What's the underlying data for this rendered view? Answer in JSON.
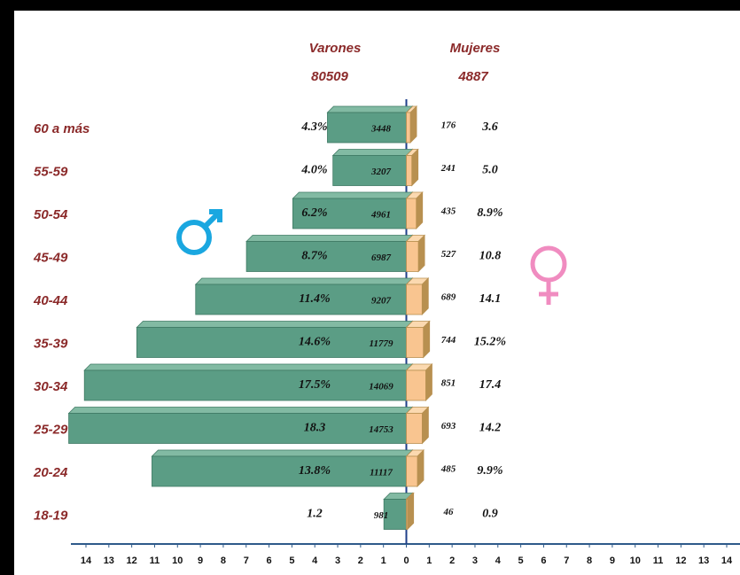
{
  "chart_data": {
    "type": "pyramid",
    "categories": [
      "60 a más",
      "55-59",
      "50-54",
      "45-49",
      "40-44",
      "35-39",
      "30-34",
      "25-29",
      "20-24",
      "18-19"
    ],
    "series": [
      {
        "name": "Varones",
        "total": 80509,
        "color": "#5b9d85",
        "values": [
          3448,
          3207,
          4961,
          6987,
          9207,
          11779,
          14069,
          14753,
          11117,
          981
        ],
        "percent_labels": [
          "4.3%",
          "4.0%",
          "6.2%",
          "8.7%",
          "11.4%",
          "14.6%",
          "17.5%",
          "18.3",
          "13.8%",
          "1.2"
        ]
      },
      {
        "name": "Mujeres",
        "total": 4887,
        "color": "#f9c590",
        "values": [
          176,
          241,
          435,
          527,
          689,
          744,
          851,
          693,
          485,
          46
        ],
        "percent_labels": [
          "3.6",
          "5.0",
          "8.9%",
          "10.8",
          "14.1",
          "15.2%",
          "17.4",
          "14.2",
          "9.9%",
          "0.9"
        ]
      }
    ],
    "xlim": [
      -14000,
      14000
    ],
    "xticks": [
      {
        "value": -14000,
        "label": "14"
      },
      {
        "value": -13000,
        "label": "13"
      },
      {
        "value": -12000,
        "label": "12"
      },
      {
        "value": -11000,
        "label": "11"
      },
      {
        "value": -10000,
        "label": "10"
      },
      {
        "value": -9000,
        "label": "9"
      },
      {
        "value": -8000,
        "label": "8"
      },
      {
        "value": -7000,
        "label": "7"
      },
      {
        "value": -6000,
        "label": "6"
      },
      {
        "value": -5000,
        "label": "5"
      },
      {
        "value": -4000,
        "label": "4"
      },
      {
        "value": -3000,
        "label": "3"
      },
      {
        "value": -2000,
        "label": "2"
      },
      {
        "value": -1000,
        "label": "1"
      },
      0,
      {
        "value": 1000,
        "label": "1"
      },
      {
        "value": 2000,
        "label": "2"
      },
      {
        "value": 3000,
        "label": "3"
      },
      {
        "value": 4000,
        "label": "4"
      },
      {
        "value": 5000,
        "label": "5"
      },
      {
        "value": 6000,
        "label": "6"
      },
      {
        "value": 7000,
        "label": "7"
      },
      {
        "value": 8000,
        "label": "8"
      },
      {
        "value": 9000,
        "label": "9"
      },
      {
        "value": 10000,
        "label": "10"
      },
      {
        "value": 11000,
        "label": "11"
      },
      {
        "value": 12000,
        "label": "12"
      },
      {
        "value": 13000,
        "label": "13"
      },
      {
        "value": 14000,
        "label": "14"
      }
    ]
  }
}
